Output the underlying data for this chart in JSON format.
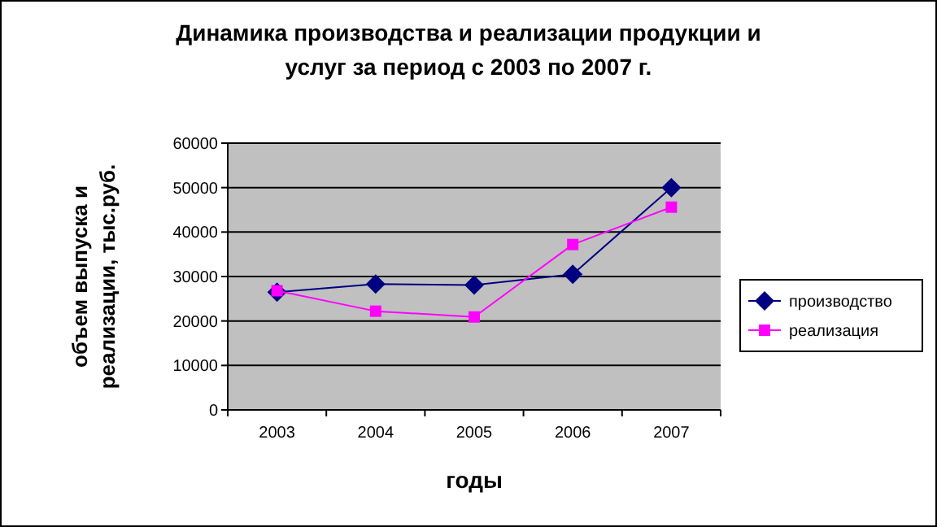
{
  "chart_data": {
    "type": "line",
    "title": "Динамика производства и реализации продукции и услуг за период с 2003 по 2007 г.",
    "xlabel": "годы",
    "ylabel": "объем выпуска и реализации, тыс.руб.",
    "categories": [
      "2003",
      "2004",
      "2005",
      "2006",
      "2007"
    ],
    "series": [
      {
        "name": "производство",
        "color": "#000080",
        "marker": "diamond",
        "values": [
          26500,
          28300,
          28100,
          30500,
          50000
        ]
      },
      {
        "name": "реализация",
        "color": "#ff00ff",
        "marker": "square",
        "values": [
          26800,
          22200,
          20900,
          37200,
          45600
        ]
      }
    ],
    "ylim": [
      0,
      60000
    ],
    "yticks": [
      0,
      10000,
      20000,
      30000,
      40000,
      50000,
      60000
    ],
    "grid": "y",
    "legend": "right"
  }
}
